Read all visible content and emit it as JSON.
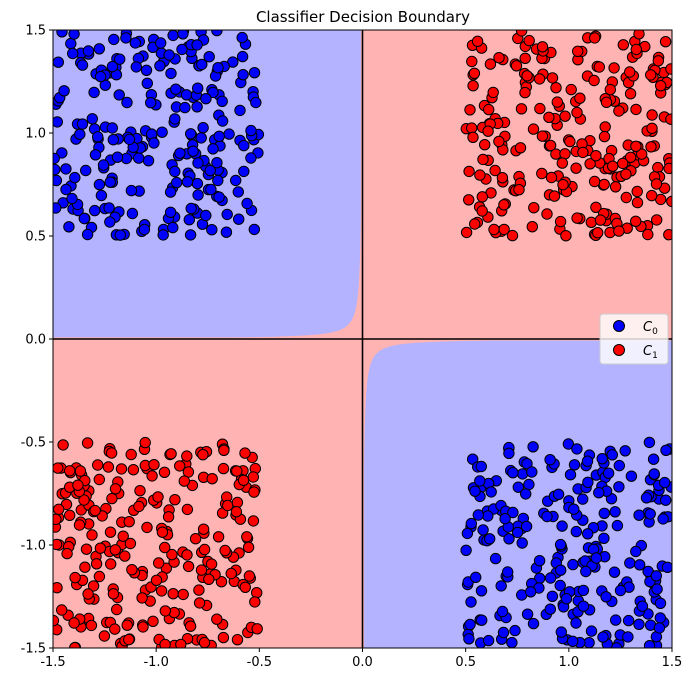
{
  "chart_data": {
    "type": "scatter",
    "title": "Classifier Decision Boundary",
    "xlabel": "",
    "ylabel": "",
    "xlim": [
      -1.5,
      1.5
    ],
    "ylim": [
      -1.5,
      1.5
    ],
    "xticks": [
      "-1.5",
      "-1.0",
      "-0.5",
      "0.0",
      "0.5",
      "1.0",
      "1.5"
    ],
    "yticks": [
      "-1.5",
      "-1.0",
      "-0.5",
      "0.0",
      "0.5",
      "1.0",
      "1.5"
    ],
    "grid": false,
    "legend_position": "center-right",
    "colors": {
      "class0_region": "#b3b3ff",
      "class1_region": "#ffb3b3",
      "class0_point": "#0000ff",
      "class1_point": "#ff0000",
      "boundary": "#ff66cc"
    },
    "series": [
      {
        "name": "C0",
        "legend": {
          "base": "C",
          "sub": "0"
        },
        "clusters": [
          {
            "x_range": [
              -1.5,
              -0.5
            ],
            "y_range": [
              0.5,
              1.5
            ],
            "count": 250
          },
          {
            "x_range": [
              0.5,
              1.5
            ],
            "y_range": [
              -1.5,
              -0.5
            ],
            "count": 250
          }
        ]
      },
      {
        "name": "C1",
        "legend": {
          "base": "C",
          "sub": "1"
        },
        "clusters": [
          {
            "x_range": [
              0.5,
              1.5
            ],
            "y_range": [
              0.5,
              1.5
            ],
            "count": 250
          },
          {
            "x_range": [
              -1.5,
              -0.5
            ],
            "y_range": [
              -1.5,
              -0.5
            ],
            "count": 250
          }
        ]
      }
    ]
  }
}
